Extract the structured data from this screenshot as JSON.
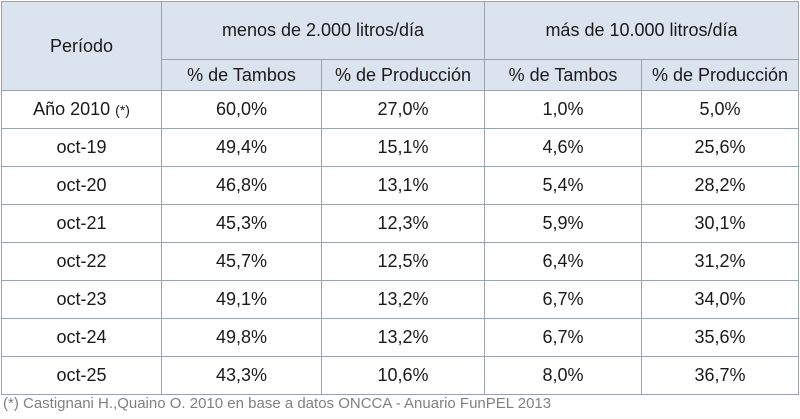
{
  "table": {
    "header": {
      "period_label": "Período",
      "group1_label": "menos de 2.000 litros/día",
      "group2_label": "más de 10.000 litros/día",
      "sub_tambos": "% de Tambos",
      "sub_produccion": "% de Producción"
    },
    "rows": [
      {
        "period": "Año 2010",
        "note": "(*)",
        "g1_tambos": "60,0%",
        "g1_prod": "27,0%",
        "g2_tambos": "1,0%",
        "g2_prod": "5,0%"
      },
      {
        "period": "oct-19",
        "note": "",
        "g1_tambos": "49,4%",
        "g1_prod": "15,1%",
        "g2_tambos": "4,6%",
        "g2_prod": "25,6%"
      },
      {
        "period": "oct-20",
        "note": "",
        "g1_tambos": "46,8%",
        "g1_prod": "13,1%",
        "g2_tambos": "5,4%",
        "g2_prod": "28,2%"
      },
      {
        "period": "oct-21",
        "note": "",
        "g1_tambos": "45,3%",
        "g1_prod": "12,3%",
        "g2_tambos": "5,9%",
        "g2_prod": "30,1%"
      },
      {
        "period": "oct-22",
        "note": "",
        "g1_tambos": "45,7%",
        "g1_prod": "12,5%",
        "g2_tambos": "6,4%",
        "g2_prod": "31,2%"
      },
      {
        "period": "oct-23",
        "note": "",
        "g1_tambos": "49,1%",
        "g1_prod": "13,2%",
        "g2_tambos": "6,7%",
        "g2_prod": "34,0%"
      },
      {
        "period": "oct-24",
        "note": "",
        "g1_tambos": "49,8%",
        "g1_prod": "13,2%",
        "g2_tambos": "6,7%",
        "g2_prod": "35,6%"
      },
      {
        "period": "oct-25",
        "note": "",
        "g1_tambos": "43,3%",
        "g1_prod": "10,6%",
        "g2_tambos": "8,0%",
        "g2_prod": "36,7%"
      }
    ]
  },
  "footnote": "(*) Castignani H.,Quaino O. 2010 en base a datos ONCCA - Anuario FunPEL 2013",
  "colors": {
    "header_bg": "#dbe3ee",
    "border": "#9aa3ad",
    "footnote": "#808080"
  }
}
